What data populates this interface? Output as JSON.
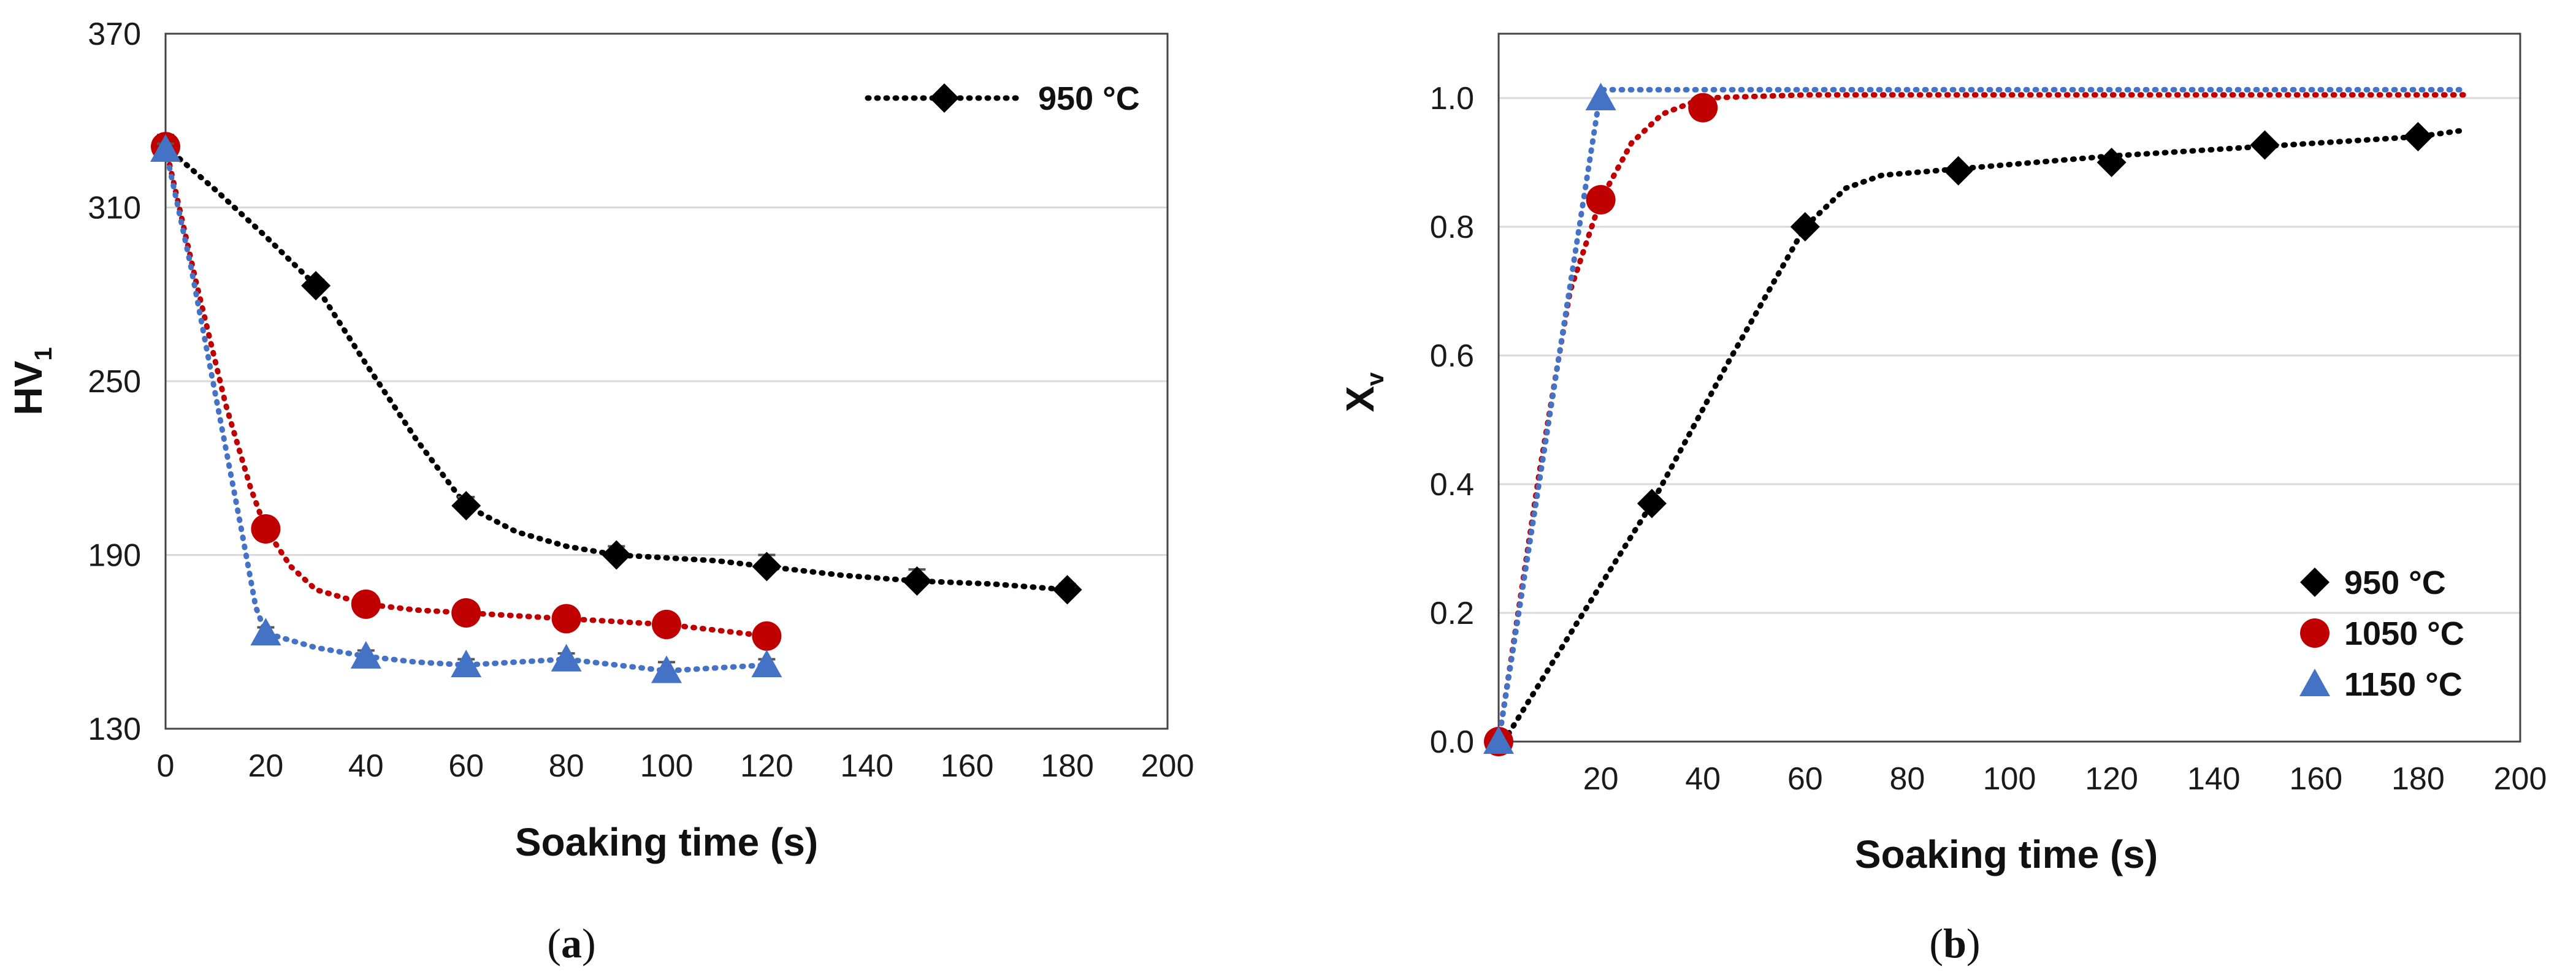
{
  "colors": {
    "c950": "#000000",
    "c1050": "#c00000",
    "c1150": "#4472c4",
    "grid": "#d9d9d9",
    "frame": "#444444"
  },
  "chart_data": [
    {
      "type": "line",
      "panel": "a",
      "caption_letter": "a",
      "xlabel": "Soaking time (s)",
      "ylabel": "HV",
      "ylabel_sub": "1",
      "xlim": [
        0,
        200
      ],
      "ylim": [
        130,
        370
      ],
      "xticks": [
        "0",
        "20",
        "40",
        "60",
        "80",
        "100",
        "120",
        "140",
        "160",
        "180",
        "200"
      ],
      "yticks": [
        "130",
        "190",
        "250",
        "310",
        "370"
      ],
      "xtick_values": [
        0,
        20,
        40,
        60,
        80,
        100,
        120,
        140,
        160,
        180,
        200
      ],
      "ytick_values": [
        130,
        190,
        250,
        310,
        370
      ],
      "grid": true,
      "legend_position": "top-right",
      "series": [
        {
          "name": "950 °C",
          "color_key": "c950",
          "marker": "diamond",
          "in_legend": true,
          "x": [
            0,
            30,
            60,
            90,
            120,
            150,
            180
          ],
          "y": [
            331,
            283,
            207,
            190,
            186,
            181,
            178
          ],
          "err": [
            4,
            2,
            3,
            3,
            4,
            4,
            2
          ],
          "curve": [
            [
              0,
              331
            ],
            [
              10,
              316
            ],
            [
              20,
              300
            ],
            [
              30,
              283
            ],
            [
              40,
              256
            ],
            [
              50,
              230
            ],
            [
              60,
              207
            ],
            [
              70,
              198
            ],
            [
              80,
              193
            ],
            [
              90,
              190
            ],
            [
              100,
              189
            ],
            [
              110,
              188
            ],
            [
              120,
              186
            ],
            [
              135,
              183
            ],
            [
              150,
              181
            ],
            [
              165,
              180
            ],
            [
              180,
              178
            ]
          ]
        },
        {
          "name": "1050 °C",
          "color_key": "c1050",
          "marker": "circle",
          "in_legend": false,
          "x": [
            0,
            20,
            40,
            60,
            80,
            100,
            120
          ],
          "y": [
            331,
            199,
            173,
            170,
            168,
            166,
            162
          ],
          "err": [
            3,
            2,
            2,
            2,
            2,
            2,
            2
          ],
          "curve": [
            [
              0,
              331
            ],
            [
              6,
              285
            ],
            [
              12,
              242
            ],
            [
              17,
              213
            ],
            [
              20,
              199
            ],
            [
              25,
              186
            ],
            [
              30,
              178
            ],
            [
              40,
              173
            ],
            [
              50,
              171
            ],
            [
              60,
              170
            ],
            [
              70,
              169
            ],
            [
              80,
              168
            ],
            [
              90,
              167
            ],
            [
              100,
              166
            ],
            [
              110,
              164
            ],
            [
              120,
              162
            ]
          ]
        },
        {
          "name": "1150 °C",
          "color_key": "c1150",
          "marker": "triangle",
          "in_legend": false,
          "x": [
            0,
            20,
            40,
            60,
            80,
            100,
            120
          ],
          "y": [
            330,
            163,
            155,
            152,
            154,
            150,
            152
          ],
          "err": [
            2,
            2,
            2,
            2,
            2,
            3,
            2
          ],
          "curve": [
            [
              0,
              330
            ],
            [
              5,
              290
            ],
            [
              10,
              245
            ],
            [
              15,
              200
            ],
            [
              18,
              172
            ],
            [
              20,
              163
            ],
            [
              30,
              158
            ],
            [
              40,
              155
            ],
            [
              50,
              153
            ],
            [
              60,
              152
            ],
            [
              70,
              153
            ],
            [
              80,
              154
            ],
            [
              90,
              152
            ],
            [
              100,
              150
            ],
            [
              110,
              151
            ],
            [
              120,
              152
            ]
          ]
        }
      ]
    },
    {
      "type": "line",
      "panel": "b",
      "caption_letter": "b",
      "xlabel": "Soaking time (s)",
      "ylabel": "X",
      "ylabel_sub": "v",
      "xlim": [
        0,
        200
      ],
      "ylim": [
        0,
        1.1
      ],
      "xticks": [
        "20",
        "40",
        "60",
        "80",
        "100",
        "120",
        "140",
        "160",
        "180",
        "200"
      ],
      "yticks": [
        "0.0",
        "0.2",
        "0.4",
        "0.6",
        "0.8",
        "1.0"
      ],
      "xtick_values": [
        20,
        40,
        60,
        80,
        100,
        120,
        140,
        160,
        180,
        200
      ],
      "ytick_values": [
        0,
        0.2,
        0.4,
        0.6,
        0.8,
        1.0
      ],
      "grid": true,
      "legend_position": "bottom-right",
      "series": [
        {
          "name": "950 °C",
          "color_key": "c950",
          "marker": "diamond",
          "in_legend": true,
          "x": [
            0,
            30,
            60,
            90,
            120,
            150,
            180
          ],
          "y": [
            0,
            0.37,
            0.8,
            0.887,
            0.9,
            0.927,
            0.94
          ],
          "curve": [
            [
              1,
              0
            ],
            [
              15,
              0.18
            ],
            [
              30,
              0.37
            ],
            [
              45,
              0.59
            ],
            [
              60,
              0.8
            ],
            [
              68,
              0.86
            ],
            [
              75,
              0.88
            ],
            [
              90,
              0.89
            ],
            [
              120,
              0.91
            ],
            [
              150,
              0.925
            ],
            [
              180,
              0.94
            ],
            [
              189,
              0.95
            ]
          ]
        },
        {
          "name": "1050 °C",
          "color_key": "c1050",
          "marker": "circle",
          "in_legend": true,
          "x": [
            0,
            20,
            40
          ],
          "y": [
            0,
            0.842,
            0.985
          ],
          "curve": [
            [
              0,
              0
            ],
            [
              8,
              0.42
            ],
            [
              14,
              0.7
            ],
            [
              20,
              0.842
            ],
            [
              26,
              0.93
            ],
            [
              32,
              0.975
            ],
            [
              40,
              1.0
            ],
            [
              60,
              1.005
            ],
            [
              100,
              1.005
            ],
            [
              189,
              1.005
            ]
          ]
        },
        {
          "name": "1150 °C",
          "color_key": "c1150",
          "marker": "triangle",
          "in_legend": true,
          "x": [
            0,
            20
          ],
          "y": [
            0,
            1.0
          ],
          "curve": [
            [
              0,
              0
            ],
            [
              20,
              1.013
            ],
            [
              189,
              1.013
            ]
          ]
        }
      ]
    }
  ]
}
